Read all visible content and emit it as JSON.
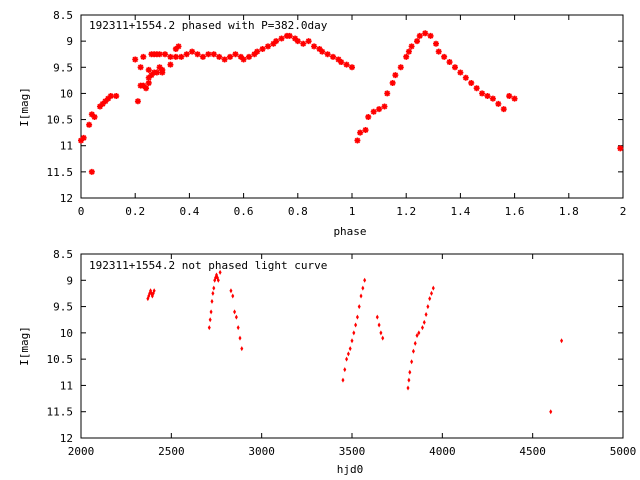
{
  "chart_data": [
    {
      "type": "scatter",
      "title": "192311+1554.2 phased with P=382.0day",
      "xlabel": "phase",
      "ylabel": "I[mag]",
      "xlim": [
        0,
        2
      ],
      "ylim": [
        8.5,
        12
      ],
      "y_inverted": true,
      "x_ticks": [
        "0",
        "0.2",
        "0.4",
        "0.6",
        "0.8",
        "1",
        "1.2",
        "1.4",
        "1.6",
        "1.8",
        "2"
      ],
      "y_ticks": [
        "8.5",
        "9",
        "9.5",
        "10",
        "10.5",
        "11",
        "11.5",
        "12"
      ],
      "marker_color": "#ff0000",
      "grid": false,
      "series": [
        {
          "x": [
            0.0,
            0.01,
            0.03,
            0.04,
            0.05,
            0.04,
            0.07,
            0.08,
            0.09,
            0.1,
            0.11,
            0.13,
            0.2,
            0.21,
            0.22,
            0.22,
            0.23,
            0.24,
            0.25,
            0.26,
            0.27,
            0.28,
            0.29,
            0.3,
            0.25,
            0.27,
            0.29,
            0.31,
            0.33,
            0.35,
            0.36,
            0.23,
            0.25,
            0.26,
            0.28,
            0.3,
            0.33,
            0.35,
            0.37,
            0.39,
            0.41,
            0.43,
            0.45,
            0.47,
            0.49,
            0.51,
            0.53,
            0.55,
            0.57,
            0.59,
            0.6,
            0.62,
            0.64,
            0.65,
            0.67,
            0.69,
            0.71,
            0.72,
            0.74,
            0.76,
            0.77,
            0.79,
            0.8,
            0.82,
            0.84,
            0.86,
            0.88,
            0.89,
            0.91,
            0.93,
            0.95,
            0.96,
            0.98,
            1.0,
            1.02,
            1.03,
            1.05,
            1.06,
            1.08,
            1.1,
            1.12,
            1.13,
            1.15,
            1.16,
            1.18,
            1.2,
            1.21,
            1.22,
            1.24,
            1.25,
            1.27,
            1.29,
            1.31,
            1.32,
            1.34,
            1.36,
            1.38,
            1.4,
            1.42,
            1.44,
            1.46,
            1.48,
            1.5,
            1.52,
            1.54,
            1.56,
            1.58,
            1.6,
            1.99
          ],
          "y": [
            10.9,
            10.85,
            10.6,
            11.5,
            10.45,
            10.4,
            10.25,
            10.2,
            10.15,
            10.1,
            10.05,
            10.05,
            9.35,
            10.15,
            9.85,
            9.5,
            9.3,
            9.9,
            9.7,
            9.25,
            9.25,
            9.25,
            9.25,
            9.6,
            9.55,
            9.6,
            9.5,
            9.25,
            9.3,
            9.15,
            9.1,
            9.85,
            9.8,
            9.65,
            9.6,
            9.55,
            9.45,
            9.3,
            9.3,
            9.25,
            9.2,
            9.25,
            9.3,
            9.25,
            9.25,
            9.3,
            9.35,
            9.3,
            9.25,
            9.3,
            9.35,
            9.3,
            9.25,
            9.2,
            9.15,
            9.1,
            9.05,
            9.0,
            8.95,
            8.9,
            8.9,
            8.95,
            9.0,
            9.05,
            9.0,
            9.1,
            9.15,
            9.2,
            9.25,
            9.3,
            9.35,
            9.4,
            9.45,
            9.5,
            10.9,
            10.75,
            10.7,
            10.45,
            10.35,
            10.3,
            10.25,
            10.0,
            9.8,
            9.65,
            9.5,
            9.3,
            9.2,
            9.1,
            9.0,
            8.9,
            8.85,
            8.9,
            9.05,
            9.2,
            9.3,
            9.4,
            9.5,
            9.6,
            9.7,
            9.8,
            9.9,
            10.0,
            10.05,
            10.1,
            10.2,
            10.3,
            10.05,
            10.1,
            11.05
          ]
        }
      ]
    },
    {
      "type": "scatter",
      "title": "192311+1554.2 not phased light curve",
      "xlabel": "hjd0",
      "ylabel": "I[mag]",
      "xlim": [
        2000,
        5000
      ],
      "ylim": [
        8.5,
        12
      ],
      "y_inverted": true,
      "x_ticks": [
        "2000",
        "2500",
        "3000",
        "3500",
        "4000",
        "4500",
        "5000"
      ],
      "y_ticks": [
        "8.5",
        "9",
        "9.5",
        "10",
        "10.5",
        "11",
        "11.5",
        "12"
      ],
      "marker_color": "#ff0000",
      "grid": false,
      "series": [
        {
          "x": [
            2370,
            2375,
            2380,
            2385,
            2390,
            2395,
            2400,
            2405,
            2710,
            2715,
            2720,
            2725,
            2730,
            2735,
            2740,
            2745,
            2750,
            2755,
            2760,
            2770,
            2830,
            2840,
            2850,
            2860,
            2870,
            2880,
            2890,
            3450,
            3460,
            3470,
            3480,
            3490,
            3500,
            3510,
            3520,
            3530,
            3540,
            3550,
            3560,
            3570,
            3640,
            3650,
            3660,
            3670,
            3810,
            3815,
            3820,
            3830,
            3840,
            3850,
            3860,
            3870,
            3890,
            3900,
            3910,
            3920,
            3930,
            3940,
            3950,
            4600,
            4660
          ],
          "y": [
            9.35,
            9.3,
            9.25,
            9.2,
            9.25,
            9.3,
            9.25,
            9.2,
            9.9,
            9.75,
            9.6,
            9.4,
            9.25,
            9.15,
            9.0,
            8.95,
            8.9,
            8.95,
            9.0,
            8.85,
            9.2,
            9.3,
            9.6,
            9.7,
            9.9,
            10.1,
            10.3,
            10.9,
            10.7,
            10.5,
            10.4,
            10.3,
            10.15,
            10.0,
            9.85,
            9.7,
            9.5,
            9.3,
            9.15,
            9.0,
            9.7,
            9.85,
            10.0,
            10.1,
            11.05,
            10.9,
            10.75,
            10.55,
            10.35,
            10.2,
            10.05,
            10.0,
            9.9,
            9.8,
            9.65,
            9.5,
            9.35,
            9.25,
            9.15,
            11.5,
            10.15
          ]
        }
      ]
    }
  ]
}
